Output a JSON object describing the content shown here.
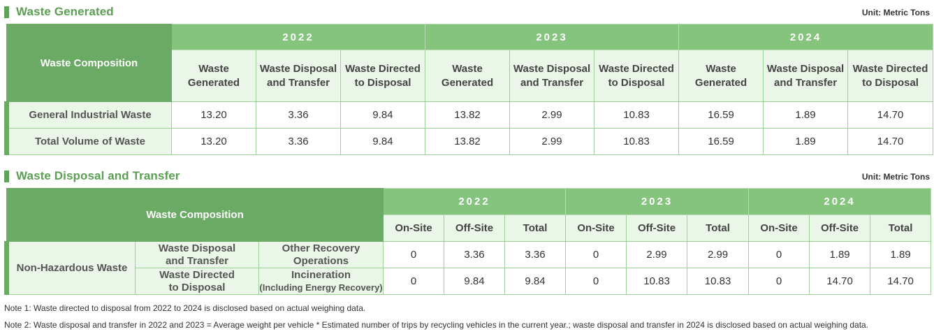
{
  "section1": {
    "title": "Waste Generated",
    "unit": "Unit: Metric Tons",
    "corner": "Waste Composition",
    "years": [
      "2022",
      "2023",
      "2024"
    ],
    "subheaders": [
      [
        "Waste",
        "Generated"
      ],
      [
        "Waste Disposal",
        "and Transfer"
      ],
      [
        "Waste Directed",
        "to Disposal"
      ]
    ],
    "rows": [
      {
        "label": "General Industrial Waste",
        "values": [
          "13.20",
          "3.36",
          "9.84",
          "13.82",
          "2.99",
          "10.83",
          "16.59",
          "1.89",
          "14.70"
        ]
      },
      {
        "label": "Total Volume of Waste",
        "values": [
          "13.20",
          "3.36",
          "9.84",
          "13.82",
          "2.99",
          "10.83",
          "16.59",
          "1.89",
          "14.70"
        ]
      }
    ]
  },
  "section2": {
    "title": "Waste Disposal and Transfer",
    "unit": "Unit: Metric Tons",
    "corner": "Waste Composition",
    "years": [
      "2022",
      "2023",
      "2024"
    ],
    "subheaders": [
      "On-Site",
      "Off-Site",
      "Total"
    ],
    "category": "Non-Hazardous Waste",
    "rows": [
      {
        "type": [
          "Waste Disposal",
          "and Transfer"
        ],
        "method": [
          "Other Recovery",
          "Operations"
        ],
        "values": [
          "0",
          "3.36",
          "3.36",
          "0",
          "2.99",
          "2.99",
          "0",
          "1.89",
          "1.89"
        ]
      },
      {
        "type": [
          "Waste Directed",
          "to Disposal"
        ],
        "method": [
          "Incineration",
          "(Including Energy Recovery)"
        ],
        "values": [
          "0",
          "9.84",
          "9.84",
          "0",
          "10.83",
          "10.83",
          "0",
          "14.70",
          "14.70"
        ]
      }
    ]
  },
  "notes": [
    "Note 1: Waste directed to disposal from 2022 to 2024 is disclosed based on actual weighing data.",
    "Note 2: Waste disposal and transfer in 2022 and 2023 = Average weight per vehicle * Estimated number of trips by recycling vehicles in the current year.; waste disposal and transfer in 2024 is disclosed based on actual weighing data."
  ]
}
